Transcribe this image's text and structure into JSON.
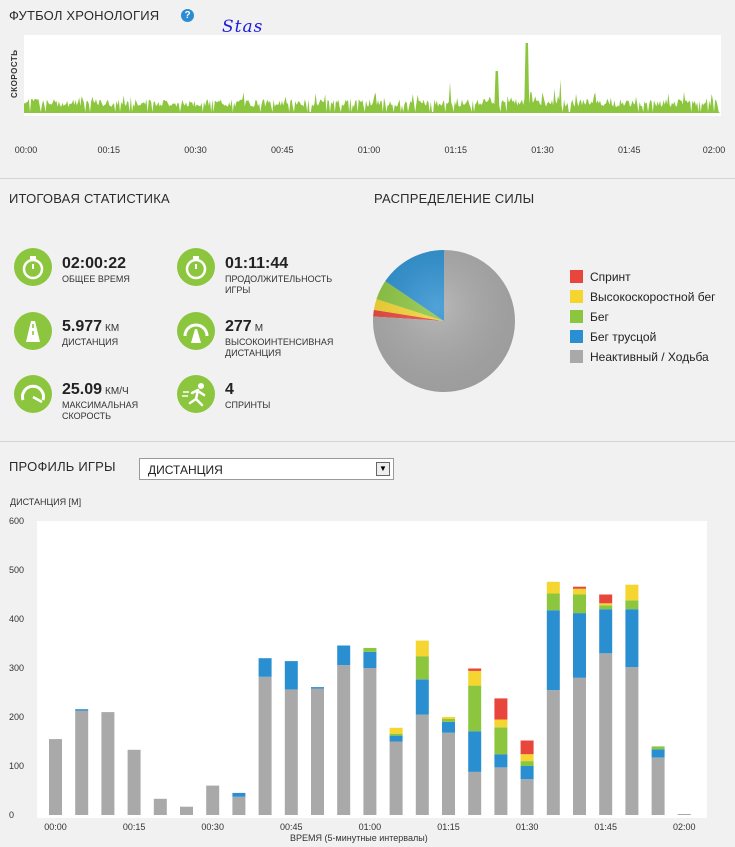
{
  "timeline": {
    "title": "ФУТБОЛ ХРОНОЛОГИЯ",
    "help_icon": "?",
    "annotation": "Stas",
    "ylabel": "СКОРОСТЬ",
    "xticks": [
      "00:00",
      "00:15",
      "00:30",
      "00:45",
      "01:00",
      "01:15",
      "01:30",
      "01:45",
      "02:00"
    ],
    "color": "#8cc63f"
  },
  "summary": {
    "title": "ИТОГОВАЯ СТАТИСТИКА",
    "items": [
      {
        "icon": "stopwatch-icon",
        "value": "02:00:22",
        "unit": "",
        "label": "ОБЩЕЕ ВРЕМЯ"
      },
      {
        "icon": "stopwatch-icon",
        "value": "01:11:44",
        "unit": "",
        "label": "ПРОДОЛЖИТЕЛЬНОСТЬ ИГРЫ"
      },
      {
        "icon": "road-icon",
        "value": "5.977",
        "unit": "КМ",
        "label": "ДИСТАНЦИЯ"
      },
      {
        "icon": "speed-road-icon",
        "value": "277",
        "unit": "М",
        "label": "ВЫСОКОИНТЕНСИВНАЯ ДИСТАНЦИЯ"
      },
      {
        "icon": "speedometer-icon",
        "value": "25.09",
        "unit": "КМ/Ч",
        "label": "МАКСИМАЛЬНАЯ СКОРОСТЬ"
      },
      {
        "icon": "sprinter-icon",
        "value": "4",
        "unit": "",
        "label": "СПРИНТЫ"
      }
    ]
  },
  "power": {
    "title": "РАСПРЕДЕЛЕНИЕ СИЛЫ",
    "legend": [
      {
        "label": "Спринт",
        "color": "#e8453c"
      },
      {
        "label": "Высокоскоростной бег",
        "color": "#f5d530"
      },
      {
        "label": "Бег",
        "color": "#8cc63f"
      },
      {
        "label": "Бег трусцой",
        "color": "#2a8fd0"
      },
      {
        "label": "Неактивный / Ходьба",
        "color": "#a9a9a9"
      }
    ]
  },
  "profile": {
    "title": "ПРОФИЛЬ ИГРЫ",
    "select_value": "ДИСТАНЦИЯ",
    "select_arrow": "▼"
  },
  "chart_data": [
    {
      "type": "pie",
      "title": "",
      "labels": [
        "Спринт",
        "Высокоскоростной бег",
        "Бег",
        "Бег трусцой",
        "Неактивный / Ходьба"
      ],
      "values": [
        1.5,
        2.5,
        4.5,
        15.5,
        76
      ],
      "colors": [
        "#e8453c",
        "#f5d530",
        "#8cc63f",
        "#2a8fd0",
        "#a9a9a9"
      ]
    },
    {
      "type": "bar",
      "stacked": true,
      "title": "",
      "ylabel": "ДИСТАНЦИЯ [М]",
      "xlabel": "ВРЕМЯ (5-минутные интервалы)",
      "ylim": [
        0,
        600
      ],
      "yticks": [
        0,
        100,
        200,
        300,
        400,
        500,
        600
      ],
      "xtick_labels": [
        "00:00",
        "00:15",
        "00:30",
        "00:45",
        "01:00",
        "01:15",
        "01:30",
        "01:45",
        "02:00"
      ],
      "grid": false,
      "categories": [
        "0",
        "1",
        "2",
        "3",
        "4",
        "5",
        "6",
        "7",
        "8",
        "9",
        "10",
        "11",
        "12",
        "13",
        "14",
        "15",
        "16",
        "17",
        "18",
        "19",
        "20",
        "21",
        "22",
        "23",
        "24"
      ],
      "series": [
        {
          "name": "Неактивный / Ходьба",
          "color": "#a9a9a9",
          "values": [
            155,
            213,
            210,
            133,
            33,
            17,
            60,
            37,
            282,
            256,
            258,
            306,
            300,
            150,
            205,
            168,
            88,
            97,
            73,
            255,
            280,
            330,
            302,
            117,
            2
          ]
        },
        {
          "name": "Бег трусцой",
          "color": "#2a8fd0",
          "values": [
            0,
            3,
            0,
            0,
            0,
            0,
            0,
            8,
            38,
            58,
            3,
            40,
            33,
            12,
            72,
            22,
            83,
            27,
            27,
            163,
            132,
            90,
            118,
            17,
            0
          ]
        },
        {
          "name": "Бег",
          "color": "#8cc63f",
          "values": [
            0,
            0,
            0,
            0,
            0,
            0,
            0,
            0,
            0,
            0,
            0,
            0,
            8,
            4,
            47,
            6,
            93,
            55,
            10,
            34,
            38,
            8,
            18,
            6,
            0
          ]
        },
        {
          "name": "Высокоскоростной бег",
          "color": "#f5d530",
          "values": [
            0,
            0,
            0,
            0,
            0,
            0,
            0,
            0,
            0,
            0,
            0,
            0,
            0,
            12,
            32,
            4,
            30,
            16,
            14,
            24,
            12,
            4,
            32,
            0,
            0
          ]
        },
        {
          "name": "Спринт",
          "color": "#e8453c",
          "values": [
            0,
            0,
            0,
            0,
            0,
            0,
            0,
            0,
            0,
            0,
            0,
            0,
            0,
            0,
            0,
            0,
            5,
            43,
            28,
            0,
            4,
            18,
            0,
            0,
            0
          ]
        }
      ]
    }
  ]
}
